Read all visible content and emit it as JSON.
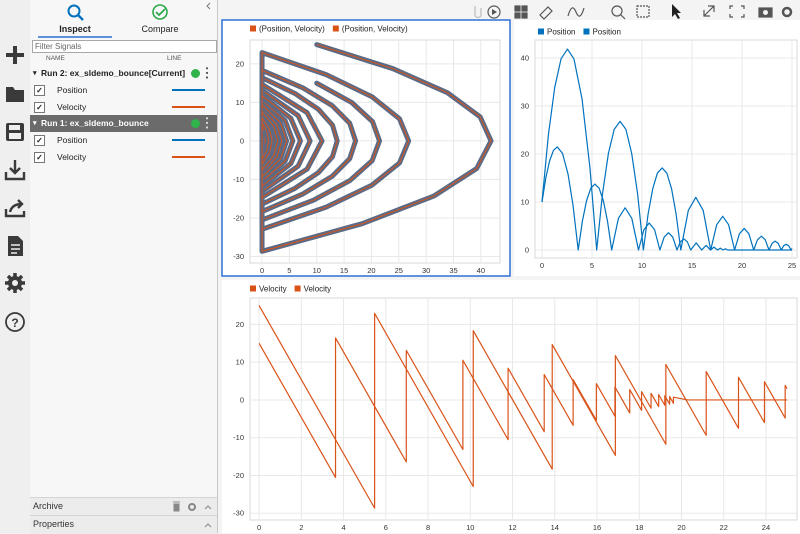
{
  "sidebar": {
    "tabs": [
      "Inspect",
      "Compare"
    ],
    "filter_placeholder": "Filter Signals",
    "columns": [
      "NAME",
      "LINE"
    ],
    "runs": [
      {
        "name": "Run 2: ex_sldemo_bounce[Current]",
        "selected": false,
        "signals": [
          {
            "name": "Position",
            "color": "#0072bd"
          },
          {
            "name": "Velocity",
            "color": "#d95319"
          }
        ]
      },
      {
        "name": "Run 1: ex_sldemo_bounce",
        "selected": true,
        "signals": [
          {
            "name": "Position",
            "color": "#0072bd"
          },
          {
            "name": "Velocity",
            "color": "#d95319"
          }
        ]
      }
    ],
    "panels": [
      "Archive",
      "Properties"
    ]
  },
  "chart_data": [
    {
      "type": "xy",
      "grid": true,
      "xlim": [
        -2.2,
        43.5
      ],
      "xticks": [
        0,
        5,
        10,
        15,
        20,
        25,
        30,
        35,
        40
      ],
      "ylim": [
        -31.7,
        26.2
      ],
      "yticks": [
        -30,
        -20,
        -10,
        0,
        10,
        20
      ],
      "series": [
        {
          "name": "(Position, Velocity)",
          "color": "#d95319",
          "marker_color": "#5b6b86",
          "x": [
            10,
            16.37,
            20.2,
            21.47,
            20.13,
            16.1,
            9.4,
            0,
            0,
            6.01,
            10.31,
            12.88,
            13.74,
            12.88,
            10.31,
            6.01,
            0,
            0,
            6.59,
            8.79,
            6.59,
            0,
            0,
            4.22,
            5.63,
            4.22,
            0,
            0,
            2.7,
            3.6,
            2.7,
            0,
            0,
            1.73,
            2.3,
            1.73,
            0,
            0,
            1.48,
            0,
            0,
            0.94,
            0,
            0,
            0.6,
            0,
            0,
            0.38,
            0,
            0,
            0.25,
            0,
            0
          ],
          "values": [
            15,
            10,
            5,
            0,
            -5.13,
            -10.26,
            -15.39,
            -20.52,
            16.42,
            12.32,
            8.21,
            4.1,
            0,
            -4.1,
            -8.21,
            -12.32,
            -16.42,
            13.13,
            6.57,
            0,
            -6.57,
            -13.13,
            10.51,
            5.26,
            0,
            -5.26,
            -10.51,
            8.41,
            4.2,
            0,
            -4.2,
            -8.41,
            6.72,
            3.36,
            0,
            -3.36,
            -6.72,
            5.38,
            0,
            -5.38,
            4.3,
            0,
            -4.3,
            3.44,
            0,
            -3.44,
            2.75,
            0,
            -2.75,
            2.2,
            0,
            -2.2,
            0
          ]
        },
        {
          "name": "(Position, Velocity)",
          "color": "#d95319",
          "marker_color": "#5b6b86",
          "x": [
            10,
            23.94,
            33.9,
            39.87,
            41.86,
            39.24,
            31.39,
            18.3,
            0,
            0,
            11.73,
            20.1,
            25.13,
            26.8,
            25.13,
            20.1,
            11.73,
            0,
            0,
            7.48,
            12.83,
            16.03,
            17.1,
            16.03,
            12.83,
            7.48,
            0,
            0,
            8.23,
            10.97,
            8.23,
            0,
            0,
            5.27,
            7.02,
            5.27,
            0,
            0,
            3.37,
            4.49,
            3.37,
            0,
            0,
            2.15,
            2.87,
            2.15,
            0,
            0,
            1.38,
            1.84,
            1.38,
            0,
            0,
            0.89,
            1.18,
            0.89,
            0,
            0,
            0.31
          ],
          "values": [
            25,
            18.75,
            12.5,
            6.25,
            0,
            -7.17,
            -14.33,
            -21.5,
            -28.66,
            22.93,
            17.2,
            11.47,
            5.73,
            0,
            -5.73,
            -11.47,
            -17.2,
            -22.93,
            18.34,
            13.76,
            9.17,
            4.59,
            0,
            -4.59,
            -9.17,
            -13.76,
            -18.34,
            14.67,
            7.34,
            0,
            -7.34,
            -14.67,
            11.74,
            5.87,
            0,
            -5.87,
            -11.74,
            9.39,
            4.7,
            0,
            -4.7,
            -9.39,
            7.51,
            3.76,
            0,
            -3.76,
            -7.51,
            6.01,
            3.0,
            0,
            -3.0,
            -6.01,
            4.81,
            2.4,
            0,
            -2.4,
            -4.81,
            3.85,
            2.97
          ]
        }
      ]
    },
    {
      "type": "line",
      "grid": true,
      "xlim": [
        -0.7,
        25.5
      ],
      "xticks": [
        0,
        5,
        10,
        15,
        20,
        25
      ],
      "ylim": [
        -1.67,
        43.75
      ],
      "yticks": [
        0,
        10,
        20,
        30,
        40
      ],
      "series": [
        {
          "name": "Position",
          "color": "#0072bd",
          "x": [
            0,
            0.38,
            0.76,
            1.15,
            1.53,
            2.05,
            2.6,
            3.1,
            3.62,
            4.04,
            4.46,
            4.88,
            5.29,
            5.71,
            6.13,
            6.55,
            6.97,
            7.64,
            8.31,
            8.98,
            9.65,
            10.19,
            10.72,
            11.26,
            11.79,
            12.22,
            12.65,
            13.07,
            13.5,
            13.84,
            14.19,
            14.53,
            14.87,
            15.42,
            15.97,
            16.41,
            16.85,
            17.2,
            17.55,
            17.83,
            18.11,
            18.34,
            18.56,
            20.3,
            25
          ],
          "values": [
            10,
            14.99,
            18.57,
            20.76,
            21.47,
            20.14,
            15.84,
            9.36,
            0,
            6.01,
            10.31,
            12.88,
            13.74,
            12.88,
            10.31,
            6.01,
            0,
            6.59,
            8.79,
            6.59,
            0,
            4.22,
            5.63,
            4.22,
            0,
            2.7,
            3.6,
            2.7,
            0,
            1.73,
            2.3,
            1.73,
            0,
            1.48,
            0,
            0.94,
            0,
            0.6,
            0,
            0.38,
            0,
            0.25,
            0,
            0,
            0
          ]
        },
        {
          "name": "Position",
          "color": "#0072bd",
          "x": [
            0,
            0.64,
            1.27,
            1.91,
            2.55,
            3.2,
            4,
            4.8,
            5.47,
            6.05,
            6.64,
            7.22,
            7.81,
            8.39,
            8.97,
            9.56,
            10.14,
            10.61,
            11.08,
            11.54,
            12.01,
            12.48,
            12.95,
            13.41,
            13.88,
            14.63,
            15.38,
            16.12,
            16.87,
            17.47,
            18.07,
            18.66,
            19.26,
            19.74,
            20.22,
            20.69,
            21.17,
            21.55,
            21.94,
            22.32,
            22.7,
            23.01,
            23.31,
            23.62,
            23.93,
            24.17,
            24.42,
            24.66,
            24.91,
            25
          ],
          "values": [
            10,
            23.99,
            33.84,
            39.86,
            41.86,
            39.77,
            31.52,
            17,
            0,
            11.73,
            20.1,
            25.13,
            26.8,
            25.13,
            20.1,
            11.73,
            0,
            7.48,
            12.83,
            16.03,
            17.1,
            16.03,
            12.83,
            7.48,
            0,
            8.23,
            10.97,
            8.23,
            0,
            5.27,
            7.02,
            5.27,
            0,
            3.37,
            4.49,
            3.37,
            0,
            2.15,
            2.87,
            2.15,
            0,
            1.38,
            1.84,
            1.38,
            0,
            0.89,
            1.18,
            0.89,
            0,
            0.31
          ]
        }
      ]
    },
    {
      "type": "line",
      "grid": true,
      "xlim": [
        -0.43,
        25.47
      ],
      "xticks": [
        0,
        2,
        4,
        6,
        8,
        10,
        12,
        14,
        16,
        18,
        20,
        22,
        24
      ],
      "ylim": [
        -31.8,
        27
      ],
      "yticks": [
        -30,
        -20,
        -10,
        0,
        10,
        20
      ],
      "series": [
        {
          "name": "Velocity",
          "color": "#d95319",
          "x": [
            0,
            3.62,
            3.62,
            6.97,
            6.97,
            9.65,
            9.65,
            11.79,
            11.79,
            13.5,
            13.5,
            14.87,
            14.87,
            15.97,
            15.97,
            16.85,
            16.85,
            17.55,
            17.55,
            18.11,
            18.11,
            18.56,
            18.56,
            18.92,
            18.92,
            19.21,
            19.21,
            19.44,
            19.44,
            19.62,
            19.62,
            20.3,
            25
          ],
          "values": [
            15,
            -20.52,
            16.42,
            -16.42,
            13.13,
            -13.13,
            10.51,
            -10.51,
            8.41,
            -8.41,
            6.72,
            -6.72,
            5.38,
            -5.38,
            4.3,
            -4.3,
            3.44,
            -3.44,
            2.75,
            -2.75,
            2.2,
            -2.2,
            1.76,
            -1.76,
            1.41,
            -1.41,
            1.13,
            -1.13,
            0.9,
            -0.9,
            0.72,
            0,
            0
          ]
        },
        {
          "name": "Velocity",
          "color": "#d95319",
          "x": [
            0,
            5.47,
            5.47,
            10.14,
            10.14,
            13.88,
            13.88,
            16.87,
            16.87,
            19.26,
            19.26,
            21.17,
            21.17,
            22.7,
            22.7,
            23.93,
            23.93,
            24.91,
            24.91,
            25
          ],
          "values": [
            25,
            -28.66,
            22.93,
            -22.93,
            18.34,
            -18.34,
            14.67,
            -14.67,
            11.74,
            -11.74,
            9.39,
            -9.39,
            7.51,
            -7.51,
            6.01,
            -6.01,
            4.81,
            -4.81,
            3.85,
            2.97
          ]
        }
      ]
    }
  ]
}
